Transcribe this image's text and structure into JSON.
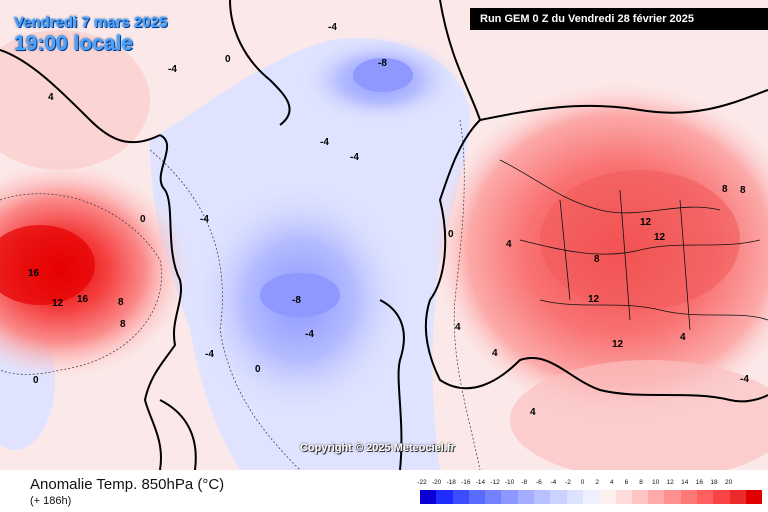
{
  "header": {
    "date": "Vendredi 7 mars 2025",
    "time": "19:00 locale",
    "run": "Run GEM 0 Z du Vendredi 28 février 2025"
  },
  "footer": {
    "parameter": "Anomalie Temp. 850hPa (°C)",
    "lead": "(+ 186h)",
    "copyright": "Copyright © 2025 Meteociel.fr"
  },
  "legend": {
    "ticks": [
      "-22",
      "-20",
      "-18",
      "-16",
      "-14",
      "-12",
      "-10",
      "-8",
      "-6",
      "-4",
      "-2",
      "0",
      "2",
      "4",
      "6",
      "8",
      "10",
      "12",
      "14",
      "16",
      "18",
      "20"
    ],
    "colors": [
      "#0a00d6",
      "#1f2bff",
      "#3d4cff",
      "#5a6bff",
      "#7381ff",
      "#8c97ff",
      "#a4adff",
      "#b8c0ff",
      "#cbd2ff",
      "#dde2ff",
      "#eef0ff",
      "#fff0f0",
      "#ffdcdc",
      "#ffc4c4",
      "#ffaaaa",
      "#ff9090",
      "#ff7878",
      "#ff5f5f",
      "#f84444",
      "#ec2a2a",
      "#e00000"
    ]
  },
  "contour_labels": [
    {
      "text": "-4"
    },
    {
      "text": "-8"
    },
    {
      "text": "-4"
    },
    {
      "text": "-4"
    },
    {
      "text": "-4"
    },
    {
      "text": "-8"
    },
    {
      "text": "-4"
    },
    {
      "text": "-4"
    },
    {
      "text": "-4"
    },
    {
      "text": "0"
    },
    {
      "text": "0"
    },
    {
      "text": "0"
    },
    {
      "text": "0"
    },
    {
      "text": "0"
    },
    {
      "text": "4"
    },
    {
      "text": "4"
    },
    {
      "text": "4"
    },
    {
      "text": "8"
    },
    {
      "text": "8"
    },
    {
      "text": "16"
    },
    {
      "text": "16"
    },
    {
      "text": "12"
    },
    {
      "text": "8"
    },
    {
      "text": "12"
    },
    {
      "text": "12"
    },
    {
      "text": "12"
    },
    {
      "text": "8"
    },
    {
      "text": "8"
    },
    {
      "text": "12"
    },
    {
      "text": "4"
    },
    {
      "text": "4"
    },
    {
      "text": "4"
    },
    {
      "text": "-4"
    }
  ]
}
